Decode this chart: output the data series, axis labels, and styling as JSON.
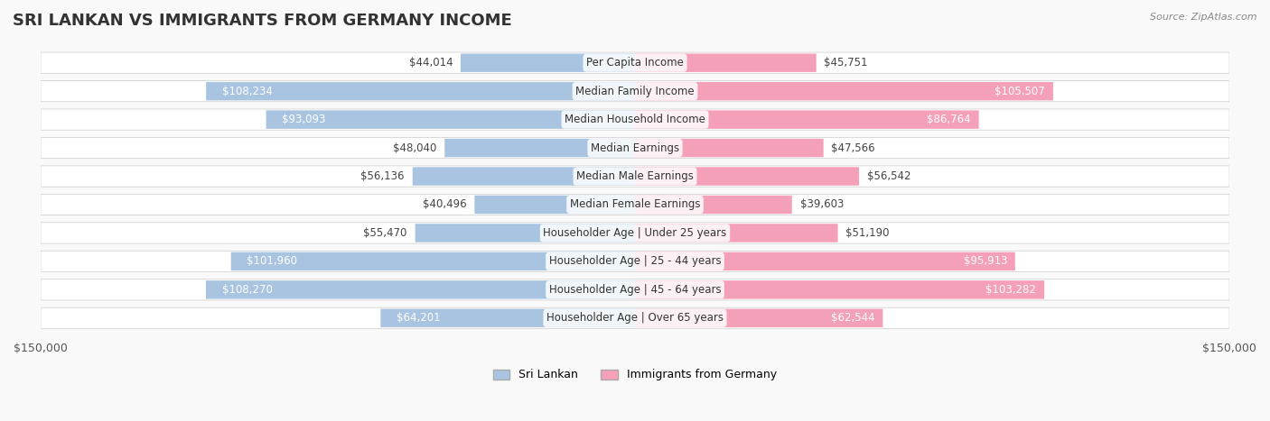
{
  "title": "SRI LANKAN VS IMMIGRANTS FROM GERMANY INCOME",
  "source": "Source: ZipAtlas.com",
  "categories": [
    "Per Capita Income",
    "Median Family Income",
    "Median Household Income",
    "Median Earnings",
    "Median Male Earnings",
    "Median Female Earnings",
    "Householder Age | Under 25 years",
    "Householder Age | 25 - 44 years",
    "Householder Age | 45 - 64 years",
    "Householder Age | Over 65 years"
  ],
  "sri_lankan": [
    44014,
    108234,
    93093,
    48040,
    56136,
    40496,
    55470,
    101960,
    108270,
    64201
  ],
  "germany": [
    45751,
    105507,
    86764,
    47566,
    56542,
    39603,
    51190,
    95913,
    103282,
    62544
  ],
  "sri_lankan_color": "#a8c4e0",
  "germany_color": "#f4a0b8",
  "sri_lankan_label_color_low": "#555555",
  "sri_lankan_label_color_high": "#ffffff",
  "germany_label_color_low": "#555555",
  "germany_label_color_high": "#ffffff",
  "xlim": 150000,
  "background_color": "#f5f5f5",
  "row_bg_color": "#ffffff",
  "row_alt_bg_color": "#f0f0f0",
  "title_fontsize": 13,
  "label_fontsize": 8.5,
  "category_fontsize": 8.5,
  "legend_fontsize": 9,
  "source_fontsize": 8
}
